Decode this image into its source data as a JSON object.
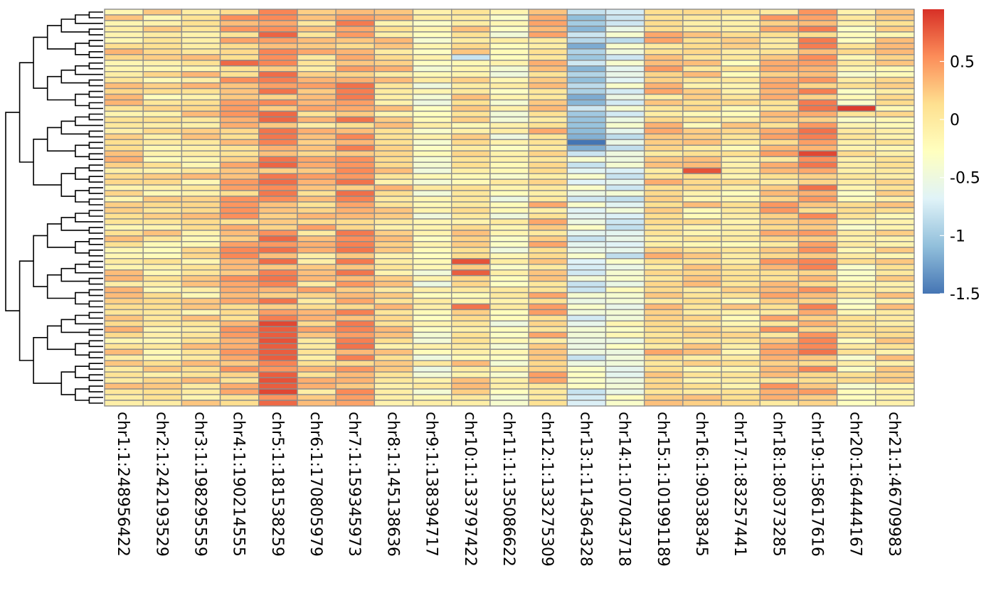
{
  "chart_data": {
    "type": "heatmap",
    "title": "",
    "xlabel": "",
    "ylabel": "",
    "columns": [
      "chr1:1:248956422",
      "chr2:1:242193529",
      "chr3:1:198295559",
      "chr4:1:190214555",
      "chr5:1:181538259",
      "chr6:1:170805979",
      "chr7:1:159345973",
      "chr8:1:145138636",
      "chr9:1:138394717",
      "chr10:1:133797422",
      "chr11:1:135086622",
      "chr12:1:133275309",
      "chr13:1:114364328",
      "chr14:1:107043718",
      "chr15:1:101991189",
      "chr16:1:90338345",
      "chr17:1:83257441",
      "chr18:1:80373285",
      "chr19:1:58617616",
      "chr20:1:64444167",
      "chr21:1:46709983"
    ],
    "row_count": 70,
    "row_labels_shown": false,
    "row_dendrogram": true,
    "column_dendrogram": false,
    "cell_border_color": "#8c8c8c",
    "color_scale": {
      "colors": [
        "#4575b4",
        "#91bfdb",
        "#e0f3f8",
        "#ffffbf",
        "#fee090",
        "#fc8d59",
        "#d73027"
      ],
      "min": -1.5,
      "max": 0.95,
      "ticks": [
        -1.5,
        -1,
        -0.5,
        0,
        0.5
      ],
      "tick_labels": [
        "-1.5",
        "-1",
        "-0.5",
        "0",
        "0.5"
      ]
    },
    "column_means": [
      0.1,
      0.02,
      0.08,
      0.3,
      0.45,
      0.2,
      0.4,
      0.12,
      -0.25,
      0.05,
      -0.25,
      0.2,
      -0.55,
      -0.4,
      0.2,
      0.05,
      0.0,
      0.25,
      0.4,
      -0.1,
      0.05
    ],
    "notable_cells": [
      {
        "row": 9,
        "col": 3,
        "value": 0.7
      },
      {
        "row": 67,
        "col": 4,
        "value": 0.85
      },
      {
        "row": 65,
        "col": 4,
        "value": 0.8
      },
      {
        "row": 58,
        "col": 4,
        "value": 0.8
      },
      {
        "row": 55,
        "col": 4,
        "value": 0.85
      },
      {
        "row": 44,
        "col": 9,
        "value": 0.8
      },
      {
        "row": 46,
        "col": 9,
        "value": 0.75
      },
      {
        "row": 52,
        "col": 9,
        "value": 0.65
      },
      {
        "row": 23,
        "col": 12,
        "value": -1.5
      },
      {
        "row": 21,
        "col": 12,
        "value": -1.1
      },
      {
        "row": 19,
        "col": 12,
        "value": -1.05
      },
      {
        "row": 5,
        "col": 12,
        "value": -0.9
      },
      {
        "row": 8,
        "col": 9,
        "value": -0.8
      },
      {
        "row": 17,
        "col": 19,
        "value": 0.9
      },
      {
        "row": 25,
        "col": 18,
        "value": 0.85
      },
      {
        "row": 28,
        "col": 15,
        "value": 0.8
      }
    ]
  }
}
